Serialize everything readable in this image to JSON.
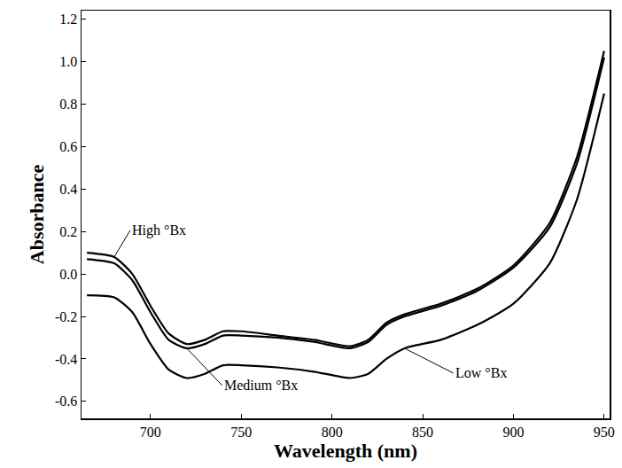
{
  "chart_data": {
    "type": "line",
    "x_label": "Wavelength (nm)",
    "y_label": "Absorbance",
    "x": [
      665,
      680,
      690,
      700,
      710,
      720,
      730,
      740,
      750,
      770,
      790,
      810,
      820,
      830,
      840,
      860,
      880,
      900,
      920,
      935,
      950
    ],
    "series": [
      {
        "name": "High °Bx",
        "color": "#000000",
        "values": [
          0.1,
          0.08,
          0.0,
          -0.15,
          -0.28,
          -0.33,
          -0.31,
          -0.27,
          -0.27,
          -0.29,
          -0.31,
          -0.34,
          -0.31,
          -0.23,
          -0.19,
          -0.14,
          -0.07,
          0.04,
          0.24,
          0.55,
          1.05
        ]
      },
      {
        "name": "Medium °Bx",
        "color": "#000000",
        "values": [
          0.07,
          0.05,
          -0.03,
          -0.18,
          -0.31,
          -0.35,
          -0.33,
          -0.29,
          -0.29,
          -0.3,
          -0.32,
          -0.35,
          -0.32,
          -0.24,
          -0.2,
          -0.15,
          -0.08,
          0.03,
          0.22,
          0.52,
          1.02
        ]
      },
      {
        "name": "Low °Bx",
        "color": "#000000",
        "values": [
          -0.1,
          -0.11,
          -0.18,
          -0.33,
          -0.45,
          -0.49,
          -0.47,
          -0.43,
          -0.43,
          -0.44,
          -0.46,
          -0.49,
          -0.47,
          -0.4,
          -0.35,
          -0.31,
          -0.24,
          -0.14,
          0.05,
          0.35,
          0.85
        ]
      }
    ],
    "xlim": [
      662,
      953
    ],
    "ylim": [
      -0.68,
      1.24
    ],
    "xticks": [
      700,
      750,
      800,
      850,
      900,
      950
    ],
    "yticks": [
      -0.6,
      -0.4,
      -0.2,
      {
        "value": 0,
        "label": "0.0"
      },
      0.2,
      0.4,
      0.6,
      0.8,
      {
        "value": 1,
        "label": "1.0"
      },
      1.2
    ],
    "grid": false
  }
}
